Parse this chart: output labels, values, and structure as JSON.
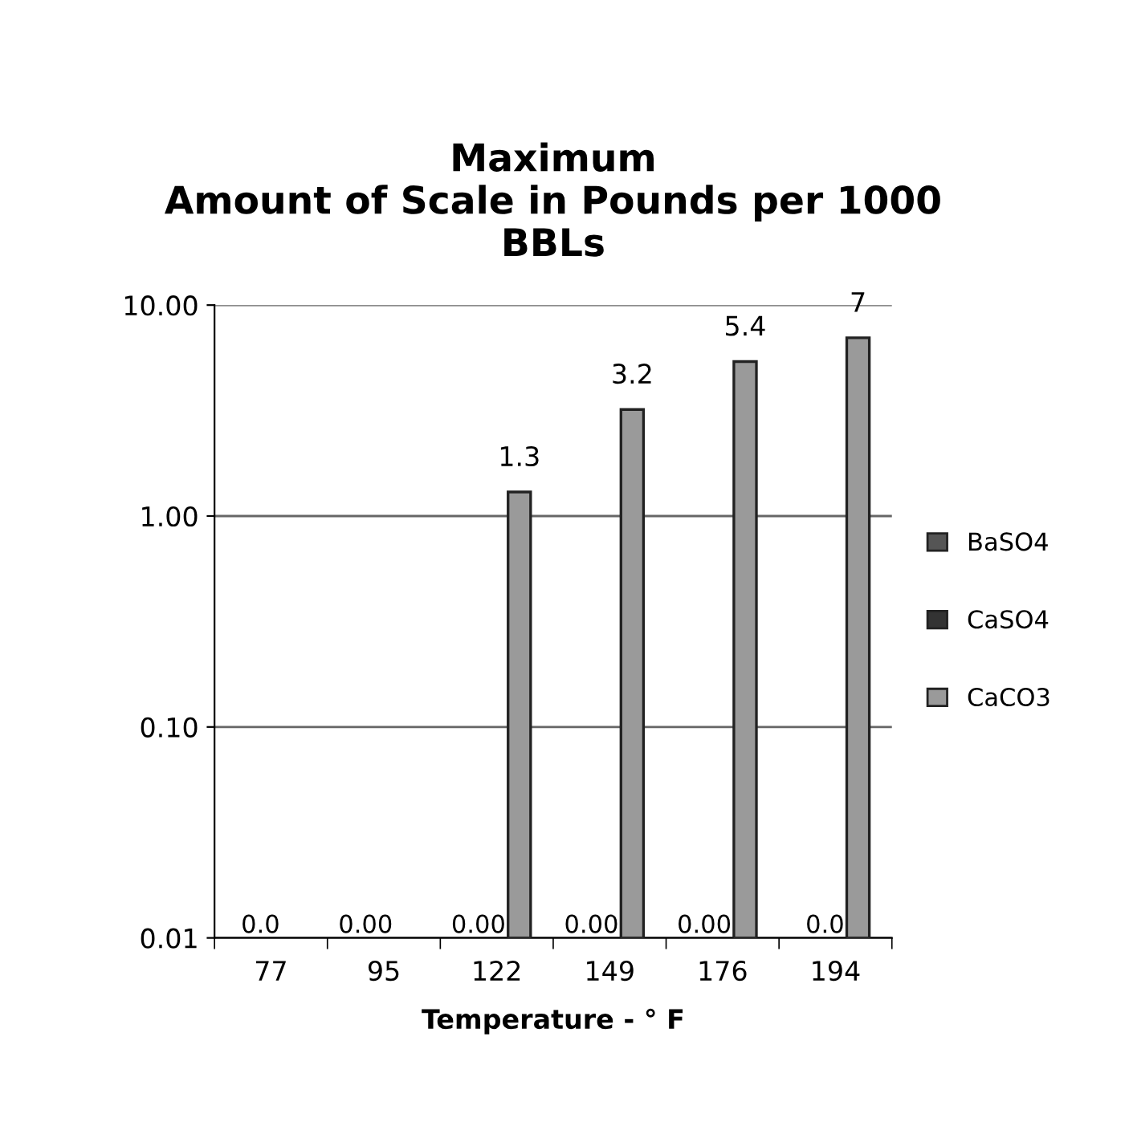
{
  "chart_data": {
    "type": "bar",
    "title": "Maximum\nAmount of Scale in Pounds per 1000\nBBLs",
    "xlabel": "Temperature - ° F",
    "categories": [
      "77",
      "95",
      "122",
      "149",
      "176",
      "194"
    ],
    "series": [
      {
        "name": "BaSO4",
        "color": "#555555",
        "values": [
          null,
          null,
          null,
          null,
          null,
          null
        ]
      },
      {
        "name": "CaSO4",
        "color": "#333333",
        "values": [
          null,
          null,
          null,
          null,
          null,
          null
        ],
        "value_labels": [
          "0.0",
          "0.00",
          "0.00",
          "0.00",
          "0.00",
          "0.0"
        ]
      },
      {
        "name": "CaCO3",
        "color": "#9a9a9a",
        "values": [
          null,
          null,
          1.3,
          3.2,
          5.4,
          7
        ],
        "value_labels": [
          null,
          null,
          "1.3",
          "3.2",
          "5.4",
          "7"
        ]
      }
    ],
    "log": "y",
    "ylim": [
      0.01,
      10
    ],
    "yticks": [
      {
        "value": 0.01,
        "label": "0.01"
      },
      {
        "value": 0.1,
        "label": "0.10"
      },
      {
        "value": 1,
        "label": "1.00"
      },
      {
        "value": 10,
        "label": "10.00"
      }
    ],
    "grid": "y",
    "legend": "right"
  }
}
